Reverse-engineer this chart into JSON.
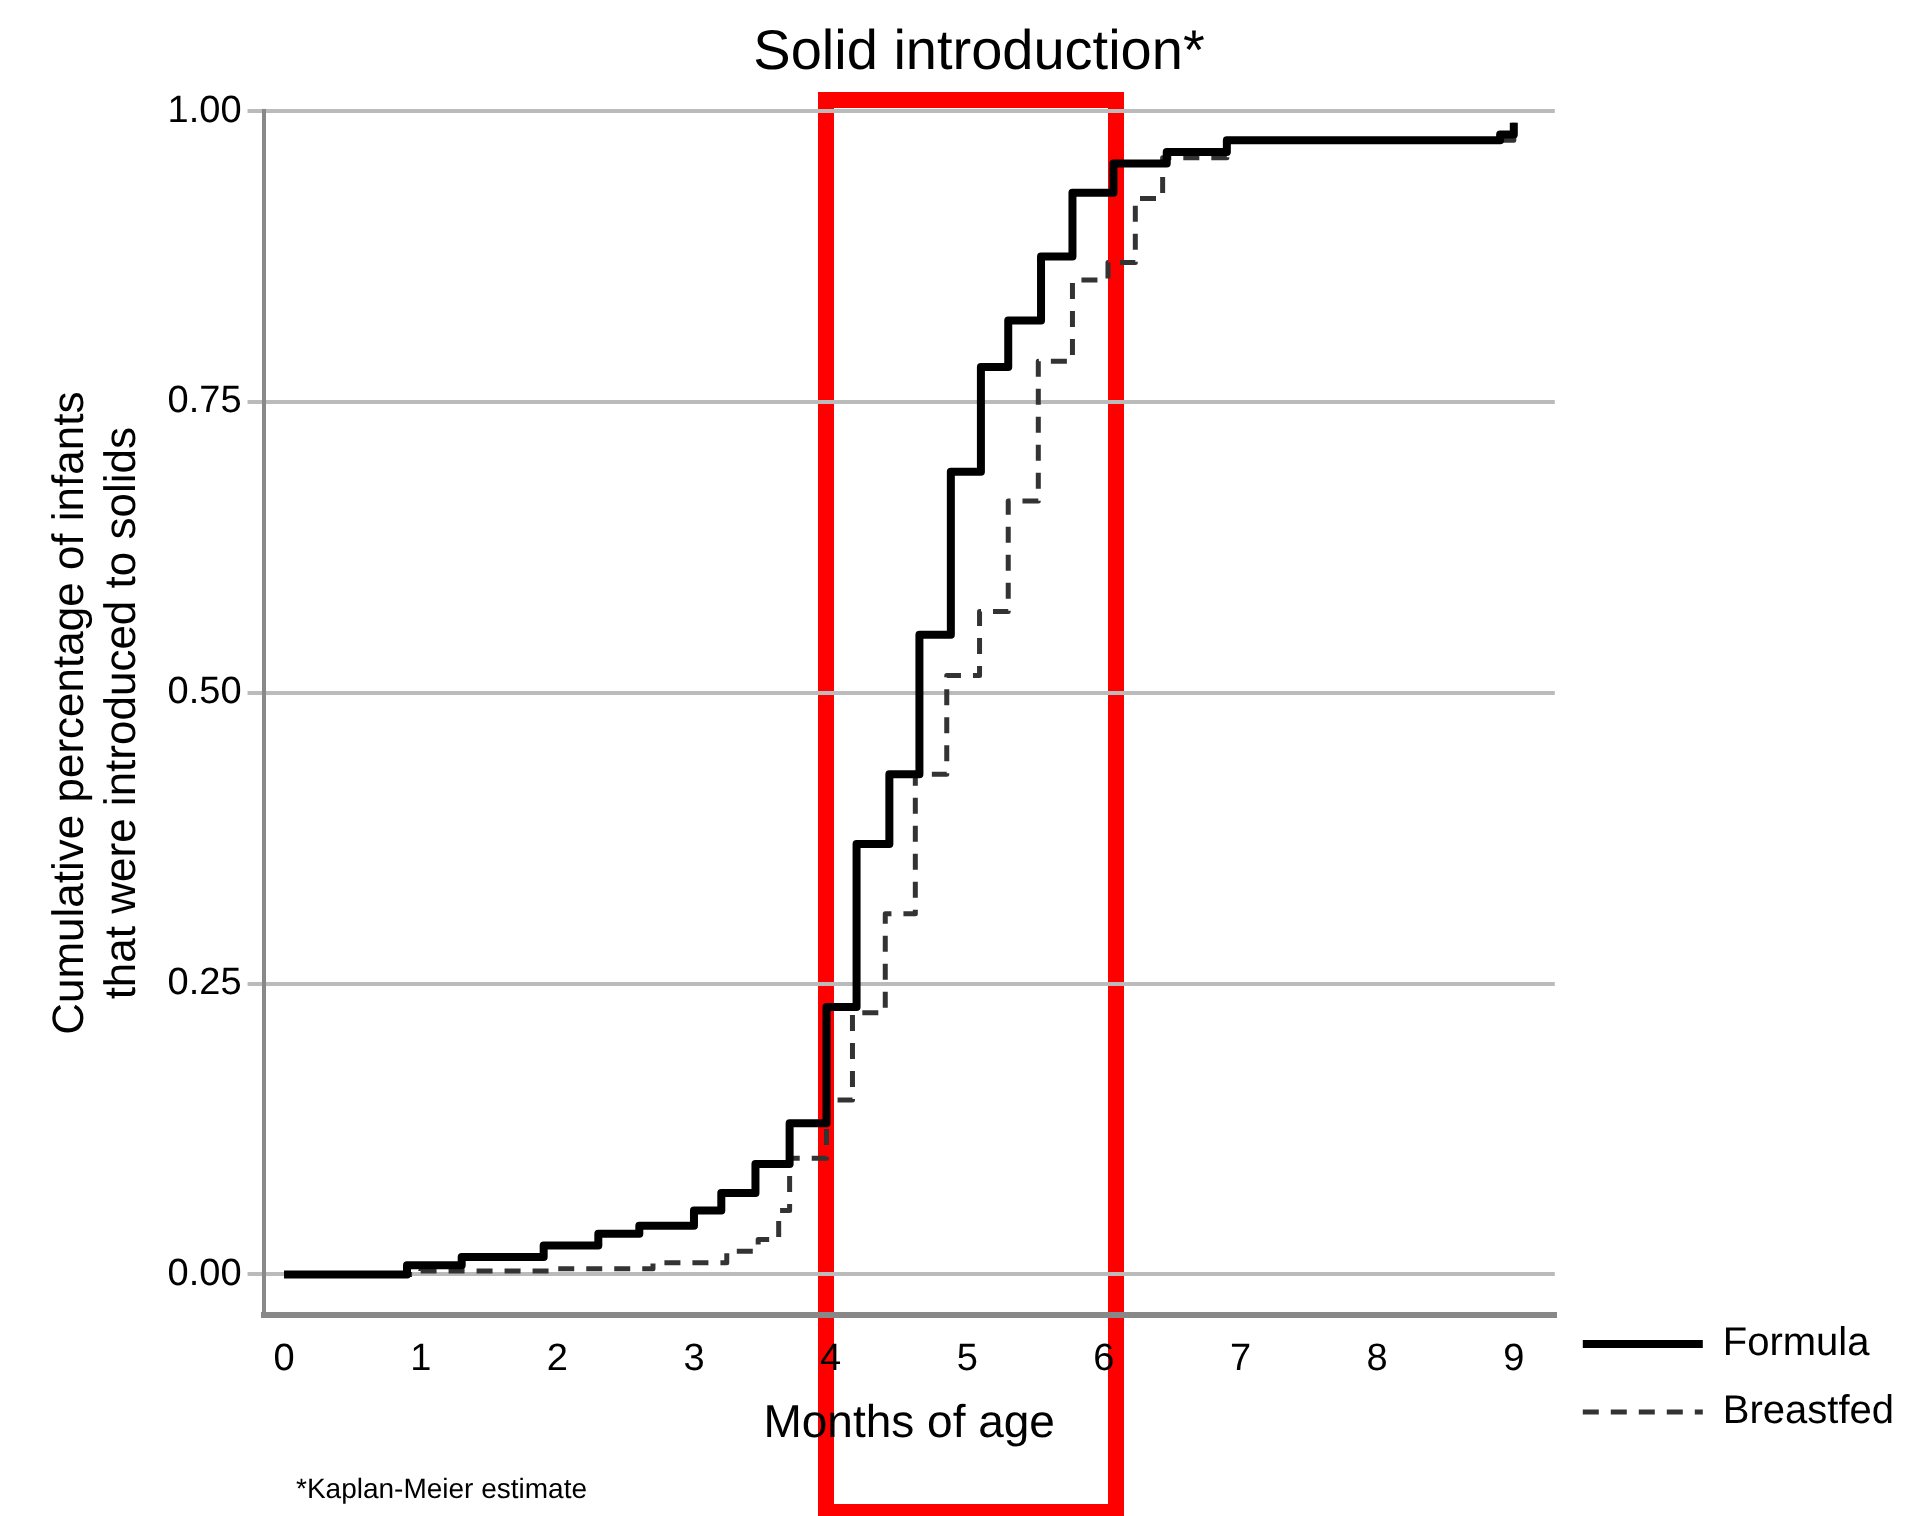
{
  "chart_data": {
    "type": "step",
    "title": "Solid introduction*",
    "xlabel": "Months of age",
    "ylabel": "Cumulative percentage of infants\nthat were introduced to solids",
    "annotations": [
      "*Kaplan-Meier estimate"
    ],
    "xlim": [
      -0.15,
      9.3
    ],
    "ylim": [
      -0.035,
      1.0
    ],
    "xticks": [
      0,
      1,
      2,
      3,
      4,
      5,
      6,
      7,
      8,
      9
    ],
    "yticks": [
      {
        "value": 0,
        "label": "0.00"
      },
      {
        "value": 0.25,
        "label": "0.25"
      },
      {
        "value": 0.5,
        "label": "0.50"
      },
      {
        "value": 0.75,
        "label": "0.75"
      },
      {
        "value": 1,
        "label": "1.00"
      }
    ],
    "grid": "y",
    "legend": "right",
    "marker": "none",
    "series": [
      {
        "name": "Formula",
        "color": "#000000",
        "line_style": "solid",
        "x": [
          0,
          0.9,
          1.3,
          1.9,
          2.3,
          2.6,
          3.0,
          3.2,
          3.45,
          3.7,
          3.97,
          4.19,
          4.43,
          4.65,
          4.88,
          5.1,
          5.3,
          5.54,
          5.77,
          6.07,
          6.46,
          6.9,
          8.9,
          9.0
        ],
        "values": [
          0,
          0.008,
          0.015,
          0.025,
          0.035,
          0.042,
          0.055,
          0.07,
          0.095,
          0.13,
          0.23,
          0.37,
          0.43,
          0.55,
          0.69,
          0.78,
          0.82,
          0.875,
          0.93,
          0.955,
          0.965,
          0.975,
          0.98,
          0.99
        ]
      },
      {
        "name": "Breastfed",
        "color": "#333333",
        "line_style": "dashed",
        "x": [
          0,
          1.0,
          2.0,
          2.7,
          3.24,
          3.47,
          3.62,
          3.7,
          3.97,
          4.16,
          4.4,
          4.62,
          4.85,
          5.09,
          5.3,
          5.52,
          5.77,
          6.03,
          6.23,
          6.43,
          6.9,
          9.0
        ],
        "values": [
          0,
          0.003,
          0.005,
          0.01,
          0.02,
          0.03,
          0.055,
          0.1,
          0.15,
          0.225,
          0.31,
          0.43,
          0.515,
          0.57,
          0.665,
          0.785,
          0.855,
          0.87,
          0.925,
          0.96,
          0.975,
          0.99
        ]
      }
    ]
  }
}
